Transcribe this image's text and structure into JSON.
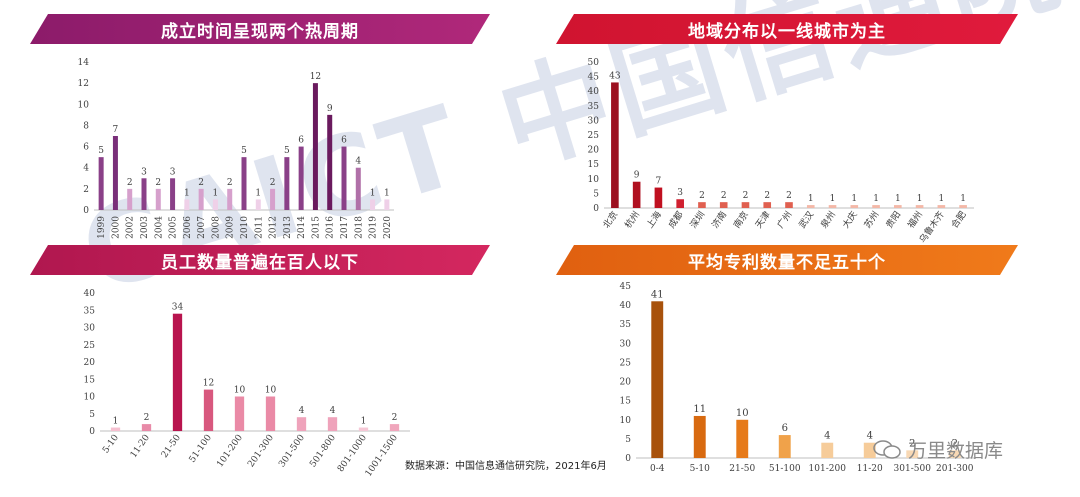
{
  "panels": {
    "p1": {
      "title": "成立时间呈现两个热周期"
    },
    "p2": {
      "title": "地域分布以一线城市为主"
    },
    "p3": {
      "title": "员工数量普遍在百人以下"
    },
    "p4": {
      "title": "平均专利数量不足五十个"
    }
  },
  "source": "数据来源：中国信息通信研究院，2021年6月",
  "watermark": {
    "text": "CAICT 中国信通院"
  },
  "logo": {
    "text": "万里数据库"
  },
  "chart_data": [
    {
      "type": "bar",
      "categories": [
        "1999",
        "2000",
        "2002",
        "2003",
        "2004",
        "2005",
        "2006",
        "2007",
        "2008",
        "2009",
        "2010",
        "2011",
        "2012",
        "2013",
        "2014",
        "2015",
        "2016",
        "2017",
        "2018",
        "2019",
        "2020"
      ],
      "values": [
        5,
        7,
        2,
        3,
        2,
        3,
        1,
        2,
        1,
        2,
        5,
        1,
        2,
        5,
        6,
        12,
        9,
        6,
        4,
        1,
        1
      ],
      "colors": [
        "#8a4088",
        "#7a2f7a",
        "#d6a0cc",
        "#8a4088",
        "#d6a0cc",
        "#8a4088",
        "#efd0e8",
        "#d6a0cc",
        "#efd0e8",
        "#d6a0cc",
        "#8a4088",
        "#efd0e8",
        "#d6a0cc",
        "#8a4088",
        "#8a4088",
        "#6a1a5e",
        "#6a1a5e",
        "#8a4088",
        "#b070a8",
        "#efd0e8",
        "#efd0e8"
      ],
      "ylim": [
        0,
        14
      ],
      "yticks": [
        0,
        2,
        4,
        6,
        8,
        10,
        12,
        14
      ]
    },
    {
      "type": "bar",
      "categories": [
        "北京",
        "杭州",
        "上海",
        "成都",
        "深圳",
        "济南",
        "南京",
        "天津",
        "广州",
        "武汉",
        "泉州",
        "大庆",
        "苏州",
        "贵阳",
        "福州",
        "乌鲁木齐",
        "合肥"
      ],
      "values": [
        43,
        9,
        7,
        3,
        2,
        2,
        2,
        2,
        2,
        1,
        1,
        1,
        1,
        1,
        1,
        1,
        1
      ],
      "colors": [
        "#9c1020",
        "#b01020",
        "#c01020",
        "#d02030",
        "#e06050",
        "#e06050",
        "#e06050",
        "#e06050",
        "#e06050",
        "#f4b8a8",
        "#f4b8a8",
        "#f4b8a8",
        "#f4b8a8",
        "#f4b8a8",
        "#f4b8a8",
        "#f4b8a8",
        "#f4b8a8"
      ],
      "ylim": [
        0,
        50
      ],
      "yticks": [
        0,
        5,
        10,
        15,
        20,
        25,
        30,
        35,
        40,
        45,
        50
      ]
    },
    {
      "type": "bar",
      "categories": [
        "5-10",
        "11-20",
        "21-50",
        "51-100",
        "101-200",
        "201-300",
        "301-500",
        "501-800",
        "801-1000",
        "1001-1500"
      ],
      "values": [
        1,
        2,
        34,
        12,
        10,
        10,
        4,
        4,
        1,
        2
      ],
      "colors": [
        "#f6c0d0",
        "#e88aa8",
        "#b8144e",
        "#d8587e",
        "#ea8aa6",
        "#ea8aa6",
        "#efa3bb",
        "#efa3bb",
        "#f6c8d6",
        "#f0a6bc"
      ],
      "ylim": [
        0,
        40
      ],
      "yticks": [
        0,
        5,
        10,
        15,
        20,
        25,
        30,
        35,
        40
      ]
    },
    {
      "type": "bar",
      "categories": [
        "0-4",
        "5-10",
        "21-50",
        "51-100",
        "101-200",
        "11-20",
        "301-500",
        "201-300"
      ],
      "values": [
        41,
        11,
        10,
        6,
        4,
        4,
        2,
        2
      ],
      "colors": [
        "#a8520c",
        "#d86a10",
        "#e67a1a",
        "#f0a24a",
        "#f6cc9a",
        "#f6cc9a",
        "#f8d8b4",
        "#f8d8b4"
      ],
      "ylim": [
        0,
        45
      ],
      "yticks": [
        0,
        5,
        10,
        15,
        20,
        25,
        30,
        35,
        40,
        45
      ]
    }
  ]
}
